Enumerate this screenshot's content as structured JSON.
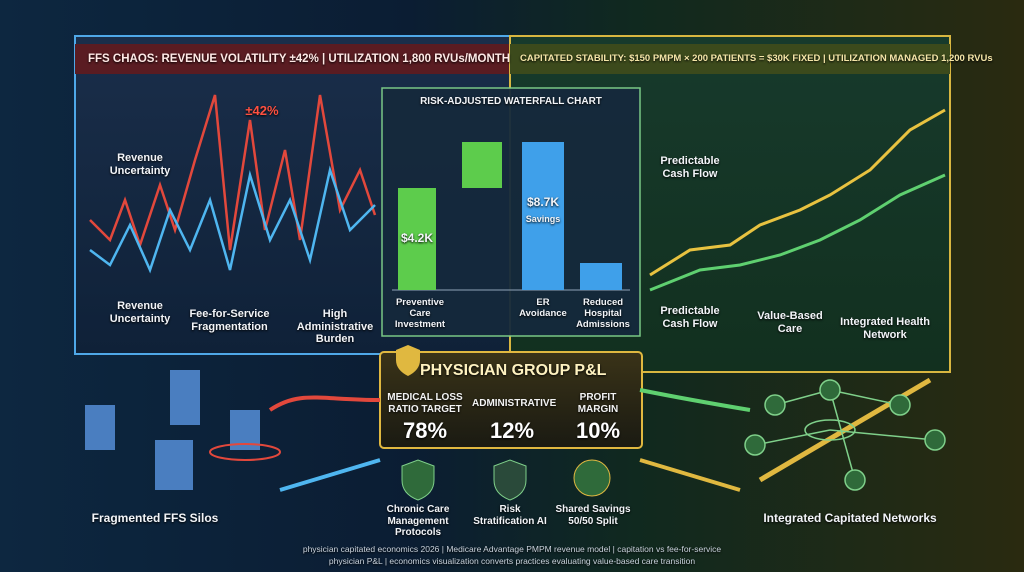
{
  "left_panel": {
    "header": "FFS CHAOS: REVENUE VOLATILITY ±42% | UTILIZATION 1,800 RVUs/MONTH",
    "spike_label": "±42%",
    "labels": [
      "Revenue Uncertainty",
      "Revenue Uncertainty",
      "Fee-for-Service Fragmentation",
      "High Administrative Burden"
    ]
  },
  "right_panel": {
    "header": "CAPITATED STABILITY: $150 PMPM × 200 PATIENTS = $30K FIXED | UTILIZATION MANAGED 1,200 RVUs",
    "labels": [
      "Predictable Cash Flow",
      "Predictable Cash Flow",
      "Value-Based Care",
      "Integrated Health Network"
    ]
  },
  "waterfall": {
    "title": "RISK-ADJUSTED WATERFALL CHART",
    "categories": [
      "Preventive Care Investment",
      "ER Avoidance",
      "Reduced Hospital Admissions"
    ],
    "bar_labels": [
      "$4.2K",
      "$8.7K",
      "Savings"
    ]
  },
  "pl_card": {
    "title": "PHYSICIAN GROUP P&L",
    "metrics": [
      {
        "label": "MEDICAL LOSS RATIO TARGET",
        "value": "78%"
      },
      {
        "label": "ADMINISTRATIVE",
        "value": "12%"
      },
      {
        "label": "PROFIT MARGIN",
        "value": "10%"
      }
    ]
  },
  "bottom_icons": [
    "Chronic Care Management Protocols",
    "Risk Stratification AI",
    "Shared Savings 50/50 Split"
  ],
  "left_caption": "Fragmented FFS Silos",
  "right_caption": "Integrated Capitated Networks",
  "footer": [
    "physician capitated economics 2026 | Medicare Advantage PMPM revenue model | capitation vs fee-for-service",
    "physician P&L | economics visualization converts practices evaluating value-based care transition"
  ]
}
